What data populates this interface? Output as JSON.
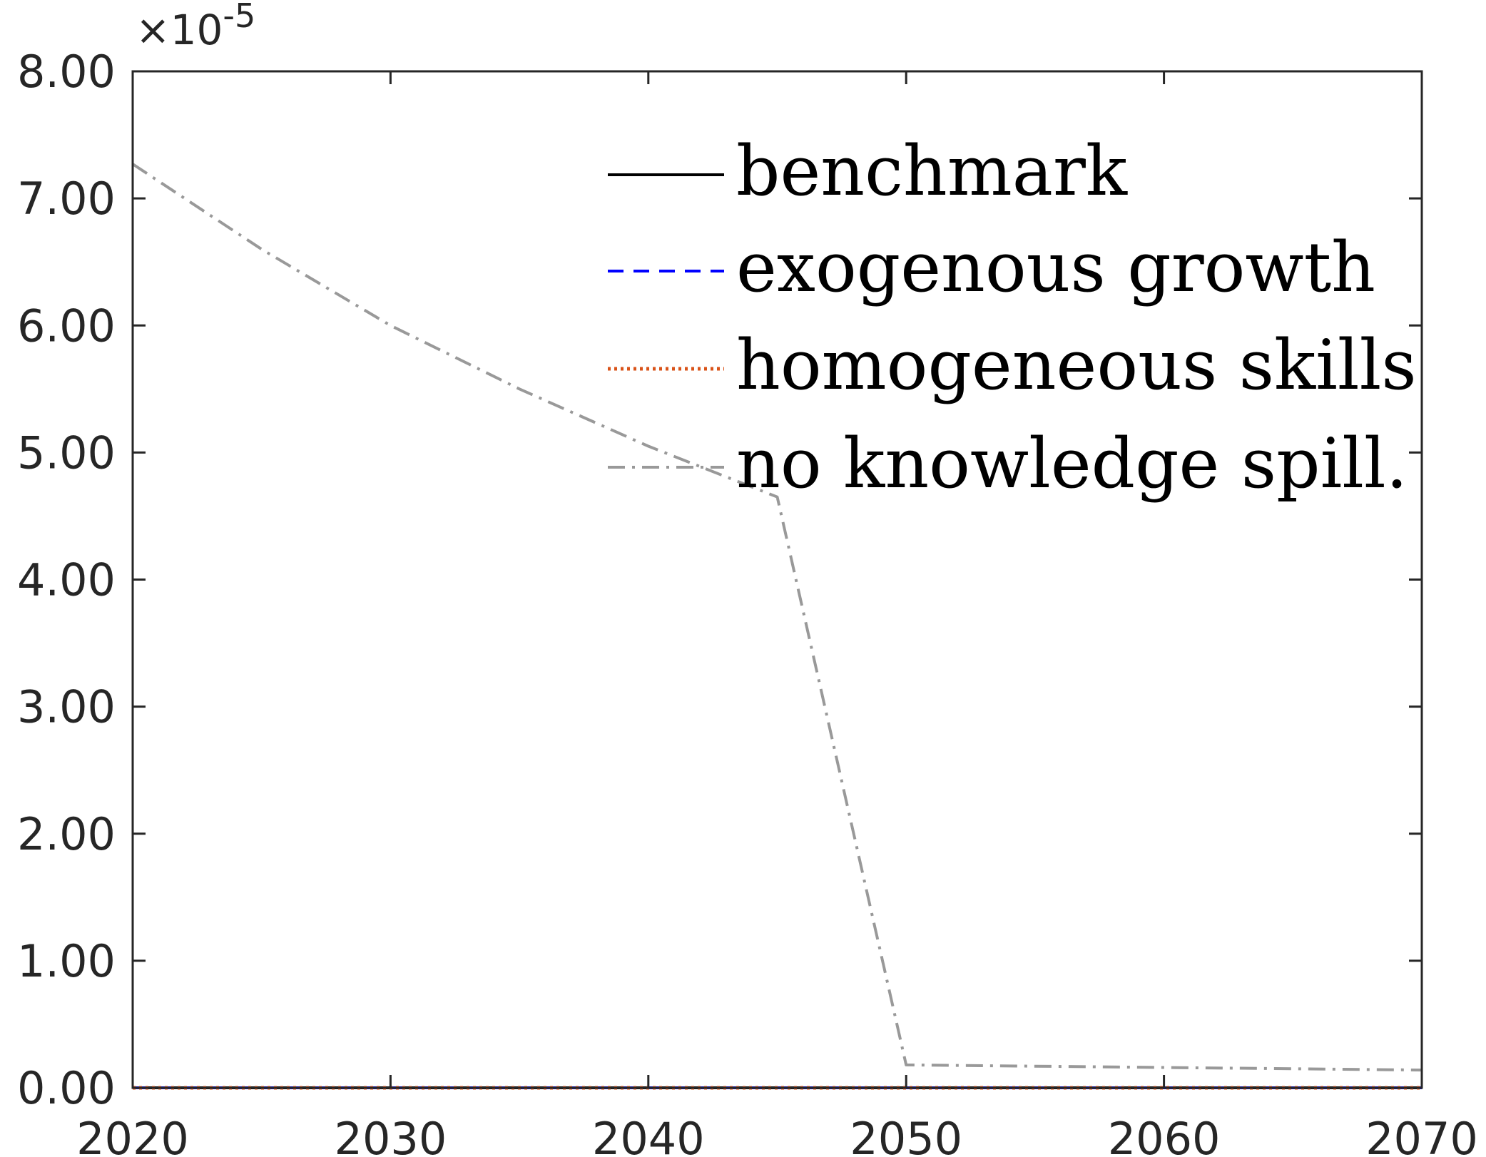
{
  "chart_data": {
    "type": "line",
    "title": "",
    "xlabel": "",
    "ylabel": "",
    "xlim": [
      2020,
      2070
    ],
    "ylim": [
      0,
      8.0
    ],
    "y_exponent_label": "×10",
    "y_exponent_power": "-5",
    "x_ticks": [
      2020,
      2030,
      2040,
      2050,
      2060,
      2070
    ],
    "y_ticks": [
      "0.00",
      "1.00",
      "2.00",
      "3.00",
      "4.00",
      "5.00",
      "6.00",
      "7.00",
      "8.00"
    ],
    "y_tick_values": [
      0,
      1,
      2,
      3,
      4,
      5,
      6,
      7,
      8
    ],
    "grid": false,
    "legend_position": "top-right",
    "series": [
      {
        "name": "benchmark",
        "color": "#000000",
        "dash": "solid",
        "x": [
          2020,
          2025,
          2030,
          2035,
          2040,
          2045,
          2050,
          2055,
          2060,
          2065,
          2070
        ],
        "y": [
          0,
          0,
          0,
          0,
          0,
          0,
          0,
          0,
          0,
          0,
          0
        ]
      },
      {
        "name": "exogenous growth",
        "color": "#0000ff",
        "dash": "dashed",
        "x": [
          2020,
          2025,
          2030,
          2035,
          2040,
          2045,
          2050,
          2055,
          2060,
          2065,
          2070
        ],
        "y": [
          0,
          0,
          0,
          0,
          0,
          0,
          0,
          0,
          0,
          0,
          0
        ]
      },
      {
        "name": "homogeneous skills",
        "color": "#d95319",
        "dash": "dotted",
        "x": [
          2020,
          2025,
          2030,
          2035,
          2040,
          2045,
          2050,
          2055,
          2060,
          2065,
          2070
        ],
        "y": [
          0,
          0,
          0,
          0,
          0,
          0,
          0,
          0,
          0,
          0,
          0
        ]
      },
      {
        "name": "no knowledge spill.",
        "color": "#999999",
        "dash": "dashdot",
        "x": [
          2020,
          2025,
          2030,
          2035,
          2040,
          2045,
          2050,
          2055,
          2060,
          2065,
          2070
        ],
        "y": [
          7.27,
          6.6,
          6.0,
          5.5,
          5.05,
          4.65,
          0.18,
          0.17,
          0.16,
          0.15,
          0.14
        ]
      }
    ]
  }
}
